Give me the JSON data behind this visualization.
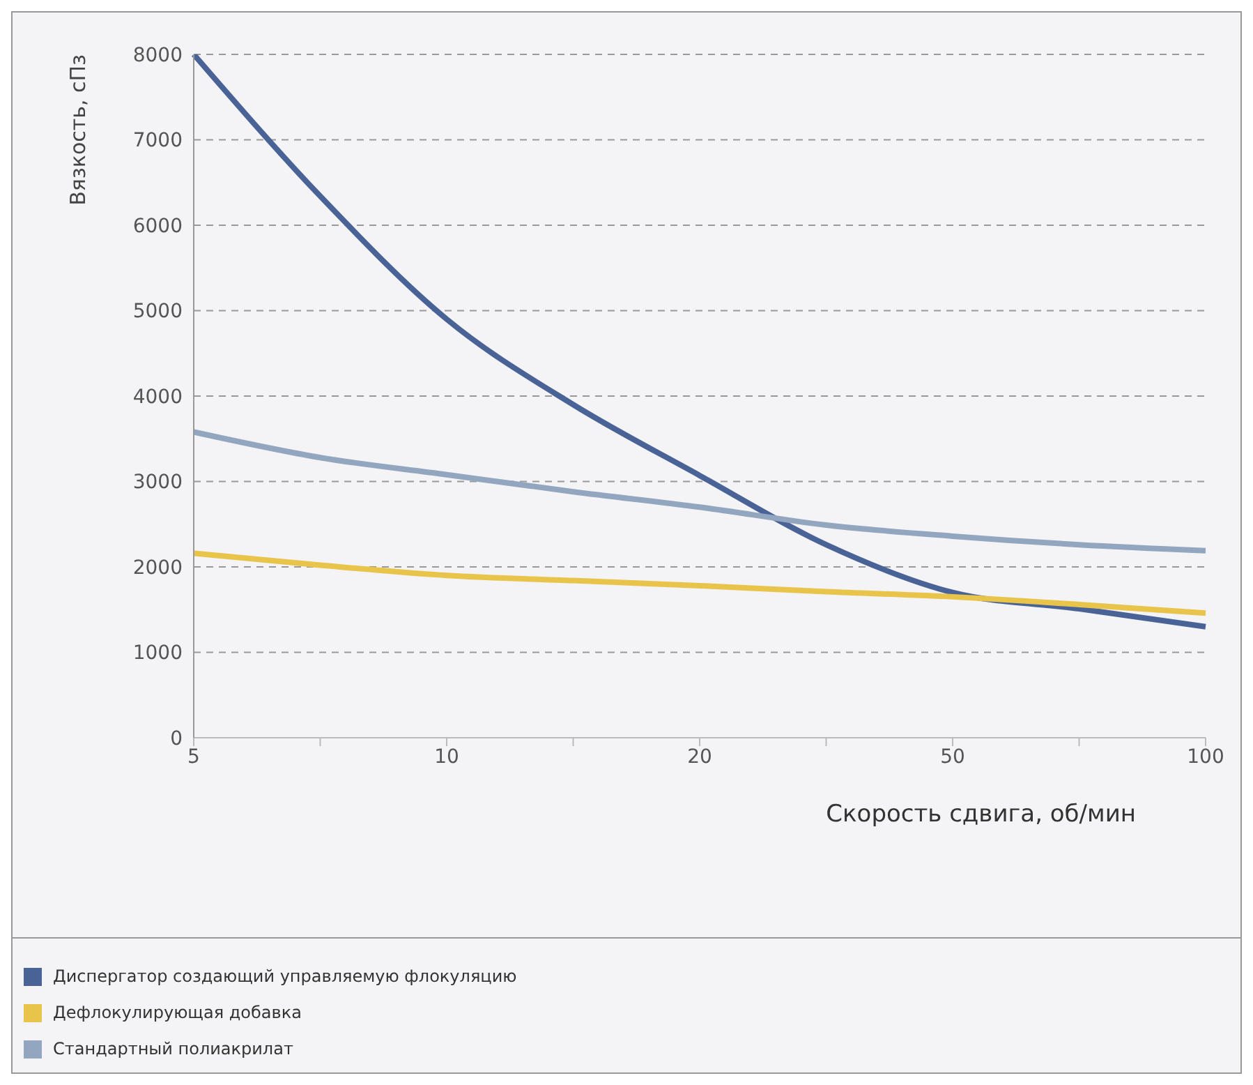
{
  "chart_data": {
    "type": "line",
    "xlabel": "Скорость сдвига, об/мин",
    "ylabel": "Вязкость, сПз",
    "categories": [
      "5",
      null,
      "10",
      null,
      "20",
      null,
      "50",
      null,
      "100"
    ],
    "series": [
      {
        "name": "Диспергатор создающий управляемую флокуляцию",
        "color": "#4a6397",
        "values": [
          8000,
          6340,
          4900,
          3900,
          3070,
          2260,
          1700,
          1510,
          1300
        ]
      },
      {
        "name": "Дефлокулирующая добавка",
        "color": "#e8c44a",
        "values": [
          2160,
          2020,
          1900,
          1840,
          1780,
          1710,
          1650,
          1560,
          1460
        ]
      },
      {
        "name": "Стандартный полиакрилат",
        "color": "#93a6bf",
        "values": [
          3580,
          3280,
          3080,
          2880,
          2700,
          2490,
          2360,
          2260,
          2190
        ]
      }
    ],
    "ylim": [
      0,
      8000
    ],
    "yticks": [
      0,
      1000,
      2000,
      3000,
      4000,
      5000,
      6000,
      7000,
      8000
    ],
    "grid": "y",
    "legend": "bottom left",
    "marker": "none",
    "line_style": "solid"
  }
}
